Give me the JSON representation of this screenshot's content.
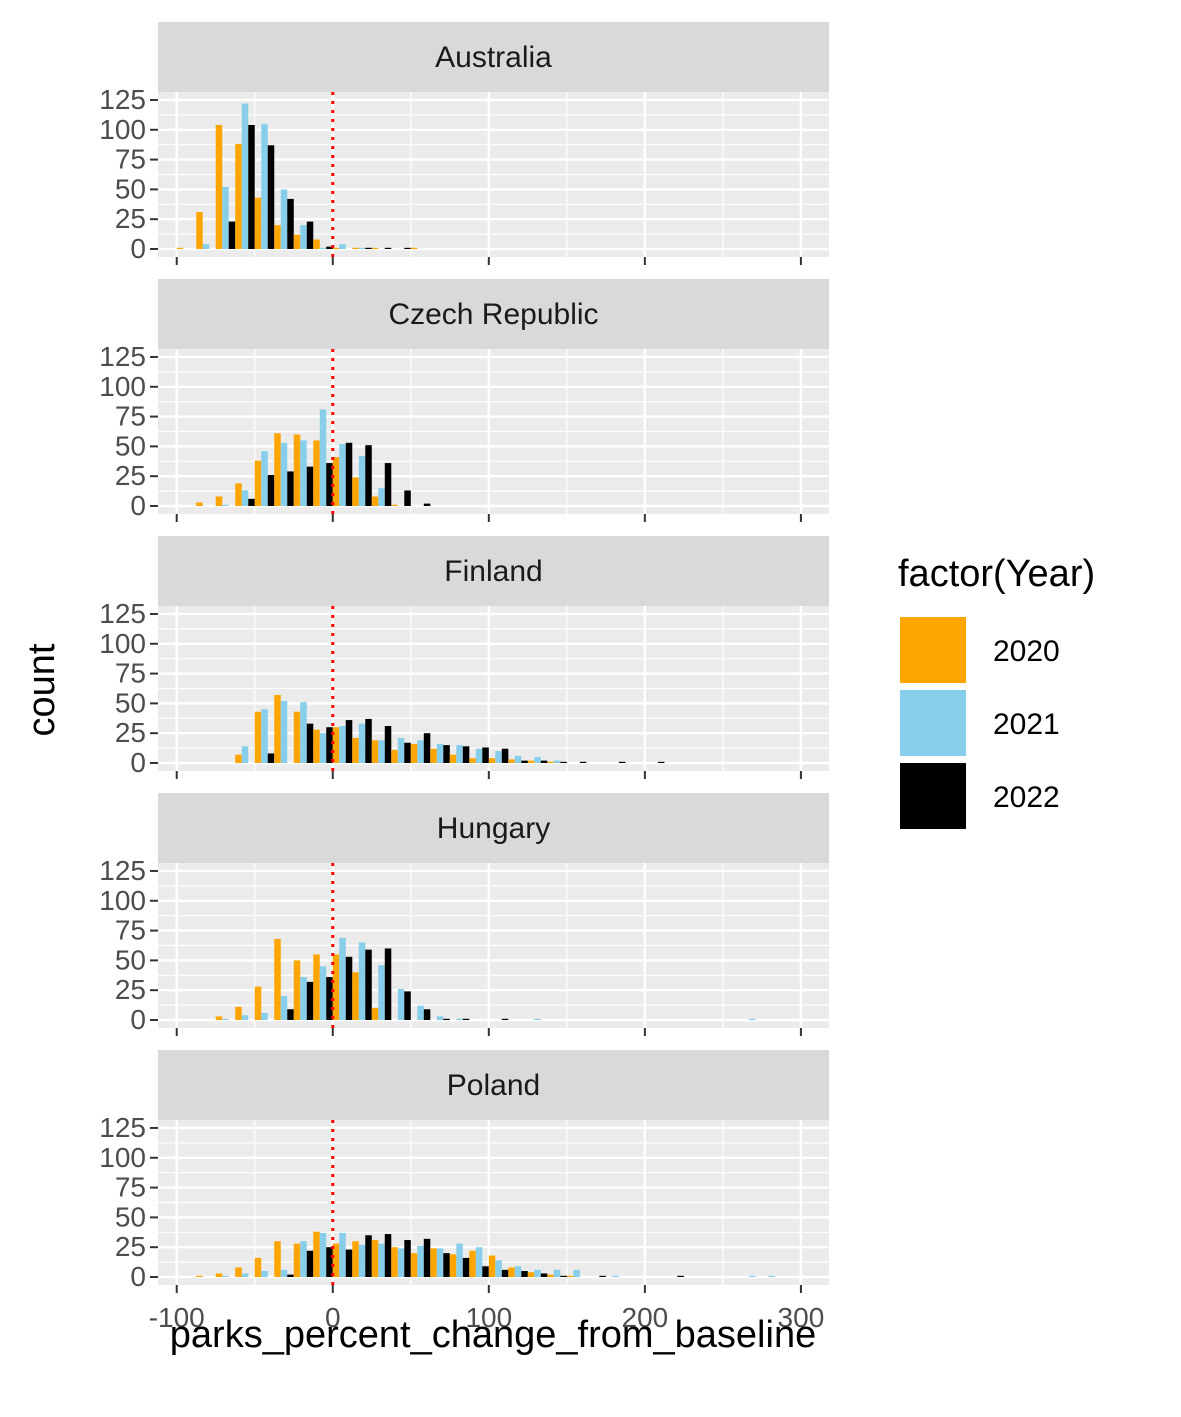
{
  "chart_data": {
    "type": "bar",
    "subtype": "faceted-histogram",
    "xlabel": "parks_percent_change_from_baseline",
    "ylabel": "count",
    "xlim": [
      -112,
      318
    ],
    "ylim": [
      0,
      130
    ],
    "x_ticks": [
      -100,
      0,
      100,
      200,
      300
    ],
    "x_tick_labels": [
      "-100",
      "0",
      "100",
      "200",
      "300"
    ],
    "y_ticks": [
      0,
      25,
      50,
      75,
      100,
      125
    ],
    "y_tick_labels": [
      "0",
      "25",
      "50",
      "75",
      "100",
      "125"
    ],
    "bin_width": 12.5,
    "reference_line": {
      "x": 0,
      "color": "#ff0000",
      "style": "dotted"
    },
    "grid": true,
    "legend": {
      "title": "factor(Year)",
      "position": "right",
      "entries": [
        {
          "label": "2020",
          "color": "#FFA500"
        },
        {
          "label": "2021",
          "color": "#87CEEB"
        },
        {
          "label": "2022",
          "color": "#000000"
        }
      ]
    },
    "panels": [
      {
        "label": "Australia",
        "bins": [
          -93.75,
          -81.25,
          -68.75,
          -56.25,
          -43.75,
          -31.25,
          -18.75,
          -6.25,
          6.25,
          18.75,
          31.25,
          43.75,
          56.25,
          68.75
        ],
        "series": [
          {
            "name": "2020",
            "values": [
              1,
              31,
              104,
              88,
              43,
              20,
              12,
              8,
              1,
              1,
              1,
              0,
              1,
              0
            ]
          },
          {
            "name": "2021",
            "values": [
              0,
              4,
              52,
              122,
              105,
              50,
              20,
              1,
              4,
              1,
              0,
              0,
              0,
              0
            ]
          },
          {
            "name": "2022",
            "values": [
              0,
              0,
              23,
              104,
              87,
              42,
              23,
              2,
              0,
              1,
              1,
              1,
              0,
              0
            ]
          }
        ]
      },
      {
        "label": "Czech Republic",
        "bins": [
          -81.25,
          -68.75,
          -56.25,
          -43.75,
          -31.25,
          -18.75,
          -6.25,
          6.25,
          18.75,
          31.25,
          43.75,
          56.25,
          68.75
        ],
        "series": [
          {
            "name": "2020",
            "values": [
              3,
              8,
              19,
              38,
              61,
              60,
              55,
              41,
              24,
              8,
              1,
              0,
              0
            ]
          },
          {
            "name": "2021",
            "values": [
              0,
              1,
              13,
              46,
              53,
              55,
              81,
              52,
              42,
              15,
              0,
              0,
              0
            ]
          },
          {
            "name": "2022",
            "values": [
              0,
              0,
              6,
              26,
              29,
              33,
              36,
              53,
              51,
              36,
              13,
              2,
              0
            ]
          }
        ]
      },
      {
        "label": "Finland",
        "bins": [
          -56.25,
          -43.75,
          -31.25,
          -18.75,
          -6.25,
          6.25,
          18.75,
          31.25,
          43.75,
          56.25,
          68.75,
          81.25,
          93.75,
          106.25,
          118.75,
          131.25,
          143.75,
          156.25,
          168.75,
          181.25,
          193.75,
          206.25
        ],
        "series": [
          {
            "name": "2020",
            "values": [
              7,
              43,
              57,
              43,
              28,
              30,
              21,
              19,
              11,
              16,
              12,
              7,
              4,
              4,
              3,
              2,
              1,
              0,
              0,
              0,
              0,
              0
            ]
          },
          {
            "name": "2021",
            "values": [
              14,
              45,
              52,
              51,
              25,
              31,
              33,
              19,
              21,
              19,
              16,
              15,
              12,
              10,
              6,
              5,
              2,
              0,
              0,
              0,
              0,
              0
            ]
          },
          {
            "name": "2022",
            "values": [
              0,
              8,
              0,
              33,
              30,
              36,
              37,
              31,
              17,
              25,
              15,
              14,
              13,
              12,
              2,
              2,
              1,
              1,
              0,
              1,
              0,
              1
            ]
          }
        ]
      },
      {
        "label": "Hungary",
        "bins": [
          -81.25,
          -68.75,
          -56.25,
          -43.75,
          -31.25,
          -18.75,
          -6.25,
          6.25,
          18.75,
          31.25,
          43.75,
          56.25,
          68.75,
          81.25,
          93.75,
          106.25,
          118.75,
          131.25,
          268.75
        ],
        "series": [
          {
            "name": "2020",
            "values": [
              0,
              3,
              11,
              28,
              68,
              50,
              55,
              55,
              40,
              10,
              0,
              0,
              0,
              0,
              0,
              0,
              0,
              0,
              0
            ]
          },
          {
            "name": "2021",
            "values": [
              0,
              1,
              4,
              6,
              20,
              36,
              45,
              69,
              65,
              46,
              26,
              12,
              3,
              1,
              0,
              0,
              0,
              1,
              1
            ]
          },
          {
            "name": "2022",
            "values": [
              0,
              0,
              0,
              0,
              9,
              32,
              36,
              53,
              59,
              60,
              24,
              9,
              1,
              1,
              0,
              1,
              0,
              0,
              0
            ]
          }
        ]
      },
      {
        "label": "Poland",
        "bins": [
          -81.25,
          -68.75,
          -56.25,
          -43.75,
          -31.25,
          -18.75,
          -6.25,
          6.25,
          18.75,
          31.25,
          43.75,
          56.25,
          68.75,
          81.25,
          93.75,
          106.25,
          118.75,
          131.25,
          143.75,
          156.25,
          168.75,
          181.25,
          193.75,
          206.25,
          218.75,
          268.75,
          281.25
        ],
        "series": [
          {
            "name": "2020",
            "values": [
              1,
              3,
              8,
              16,
              30,
              28,
              38,
              28,
              30,
              31,
              25,
              20,
              24,
              19,
              22,
              18,
              8,
              4,
              2,
              1,
              0,
              0,
              0,
              0,
              0,
              0,
              0
            ]
          },
          {
            "name": "2021",
            "values": [
              0,
              1,
              3,
              5,
              6,
              30,
              37,
              37,
              27,
              28,
              24,
              26,
              24,
              28,
              25,
              14,
              9,
              6,
              6,
              6,
              0,
              1,
              0,
              0,
              0,
              1,
              1
            ]
          },
          {
            "name": "2022",
            "values": [
              0,
              0,
              0,
              0,
              2,
              22,
              25,
              23,
              35,
              36,
              31,
              32,
              20,
              16,
              9,
              6,
              5,
              3,
              1,
              0,
              1,
              0,
              0,
              0,
              1,
              0,
              0
            ]
          }
        ]
      }
    ]
  }
}
